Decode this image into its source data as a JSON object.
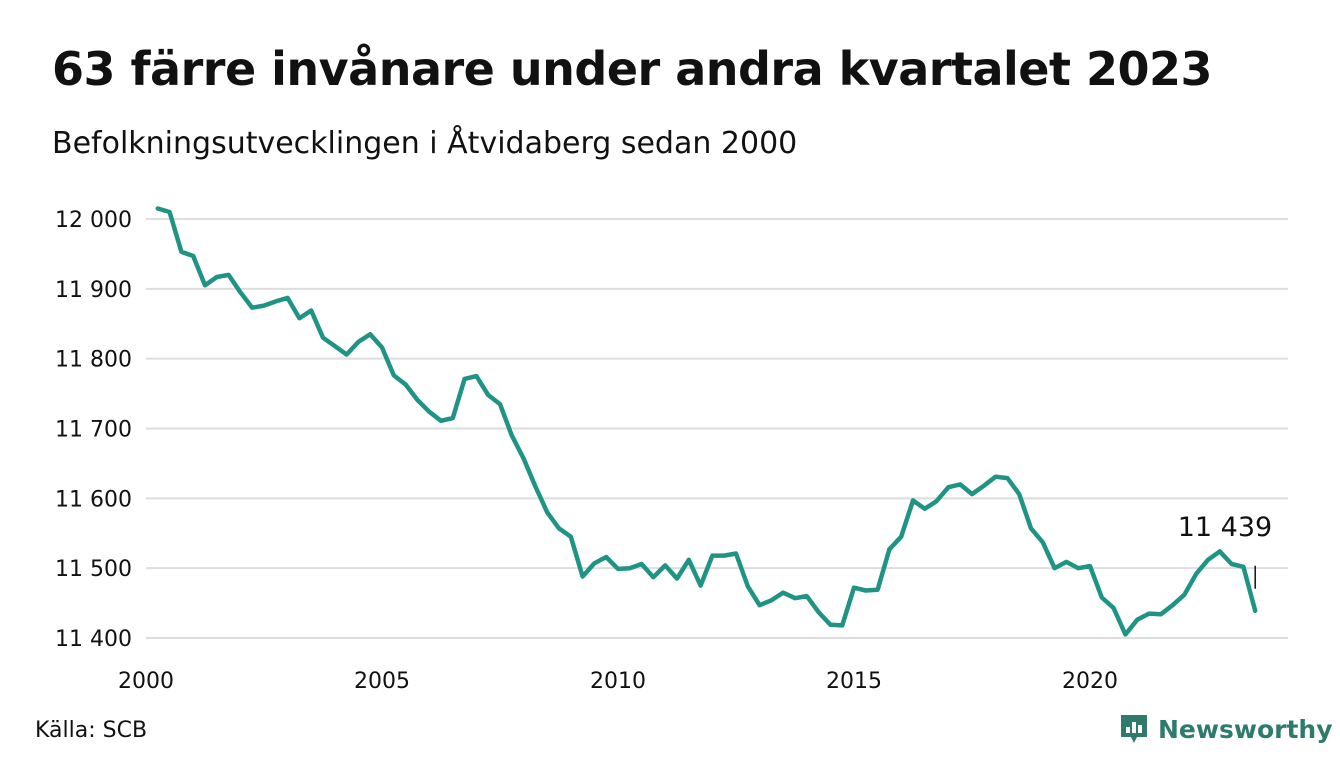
{
  "header": {
    "title": "63 färre invånare under andra kvartalet 2023",
    "subtitle": "Befolkningsutvecklingen i Åtvidaberg sedan 2000"
  },
  "footer": {
    "source": "Källa: SCB",
    "brand": "Newsworthy"
  },
  "colors": {
    "line": "#1f9485",
    "grid": "#dddddd",
    "brand": "#2e7b6e"
  },
  "chart_data": {
    "type": "line",
    "title": "63 färre invånare under andra kvartalet 2023",
    "subtitle": "Befolkningsutvecklingen i Åtvidaberg sedan 2000",
    "xlabel": "",
    "ylabel": "",
    "xlim": [
      2000,
      2024.5
    ],
    "ylim": [
      11390,
      12020
    ],
    "x_ticks": [
      {
        "value": 2000,
        "label": "2000"
      },
      {
        "value": 2005,
        "label": "2005"
      },
      {
        "value": 2010,
        "label": "2010"
      },
      {
        "value": 2015,
        "label": "2015"
      },
      {
        "value": 2020,
        "label": "2020"
      }
    ],
    "y_ticks": [
      {
        "value": 12000,
        "label": "12 000"
      },
      {
        "value": 11900,
        "label": "11 900"
      },
      {
        "value": 11800,
        "label": "11 800"
      },
      {
        "value": 11700,
        "label": "11 700"
      },
      {
        "value": 11600,
        "label": "11 600"
      },
      {
        "value": 11500,
        "label": "11 500"
      },
      {
        "value": 11400,
        "label": "11 400"
      }
    ],
    "grid": "horizontal",
    "legend": "none",
    "series": [
      {
        "x": [
          2000.25,
          2000.5,
          2000.75,
          2001.0,
          2001.25,
          2001.5,
          2001.75,
          2002.0,
          2002.25,
          2002.5,
          2002.75,
          2003.0,
          2003.25,
          2003.5,
          2003.75,
          2004.0,
          2004.25,
          2004.5,
          2004.75,
          2005.0,
          2005.25,
          2005.5,
          2005.75,
          2006.0,
          2006.25,
          2006.5,
          2006.75,
          2007.0,
          2007.25,
          2007.5,
          2007.75,
          2008.0,
          2008.25,
          2008.5,
          2008.75,
          2009.0,
          2009.25,
          2009.5,
          2009.75,
          2010.0,
          2010.25,
          2010.5,
          2010.75,
          2011.0,
          2011.25,
          2011.5,
          2011.75,
          2012.0,
          2012.25,
          2012.5,
          2012.75,
          2013.0,
          2013.25,
          2013.5,
          2013.75,
          2014.0,
          2014.25,
          2014.5,
          2014.75,
          2015.0,
          2015.25,
          2015.5,
          2015.75,
          2016.0,
          2016.25,
          2016.5,
          2016.75,
          2017.0,
          2017.25,
          2017.5,
          2017.75,
          2018.0,
          2018.25,
          2018.5,
          2018.75,
          2019.0,
          2019.25,
          2019.5,
          2019.75,
          2020.0,
          2020.25,
          2020.5,
          2020.75,
          2021.0,
          2021.25,
          2021.5,
          2021.75,
          2022.0,
          2022.25,
          2022.5,
          2022.75,
          2023.0,
          2023.25,
          2023.5
        ],
        "values": [
          12015,
          12010,
          11953,
          11947,
          11905,
          11917,
          11920,
          11895,
          11873,
          11876,
          11882,
          11887,
          11858,
          11869,
          11830,
          11818,
          11806,
          11824,
          11835,
          11816,
          11776,
          11763,
          11741,
          11724,
          11711,
          11715,
          11771,
          11775,
          11748,
          11735,
          11690,
          11657,
          11617,
          11580,
          11557,
          11545,
          11488,
          11507,
          11516,
          11499,
          11500,
          11506,
          11487,
          11504,
          11485,
          11512,
          11475,
          11518,
          11518,
          11521,
          11474,
          11447,
          11454,
          11465,
          11457,
          11460,
          11437,
          11419,
          11418,
          11472,
          11468,
          11469,
          11527,
          11545,
          11597,
          11585,
          11596,
          11616,
          11620,
          11606,
          11618,
          11631,
          11629,
          11606,
          11557,
          11537,
          11500,
          11509,
          11500,
          11503,
          11458,
          11443,
          11405,
          11426,
          11435,
          11434,
          11447,
          11462,
          11492,
          11512,
          11524,
          11506,
          11502,
          11439
        ]
      }
    ],
    "annotations": [
      {
        "x": 2023.5,
        "y": 11439,
        "text": "11 439"
      }
    ]
  }
}
